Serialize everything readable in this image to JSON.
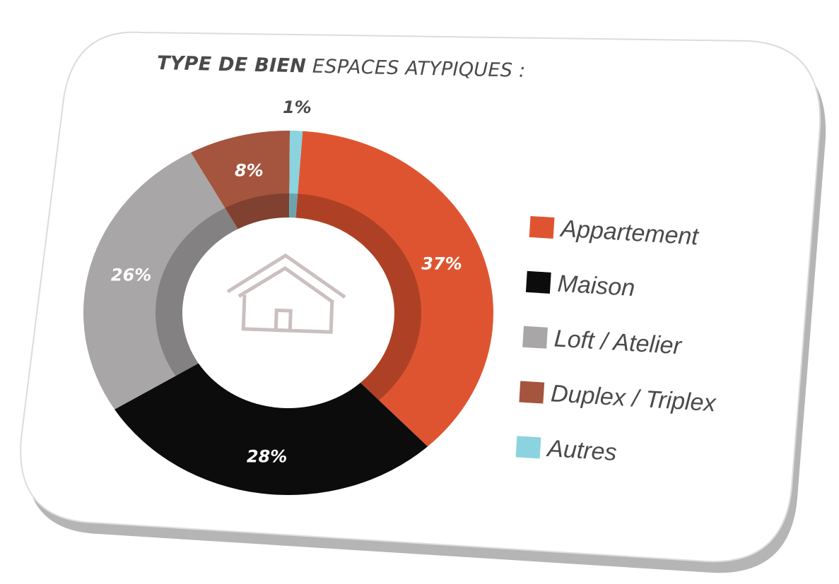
{
  "header": {
    "title_bold": "TYPE DE BIEN",
    "title_rest": "ESPACES ATYPIQUES :"
  },
  "chart_data": {
    "type": "pie",
    "categories": [
      "Appartement",
      "Maison",
      "Loft / Atelier",
      "Duplex / Triplex",
      "Autres"
    ],
    "values": [
      37,
      28,
      26,
      8,
      1
    ],
    "data_labels": [
      "37%",
      "28%",
      "26%",
      "8%",
      "1%"
    ],
    "colors": [
      "#df5430",
      "#0c0c0c",
      "#a8a6a7",
      "#a5543e",
      "#8ad3df"
    ],
    "legend_position": "right",
    "center_icon": "house-icon"
  }
}
